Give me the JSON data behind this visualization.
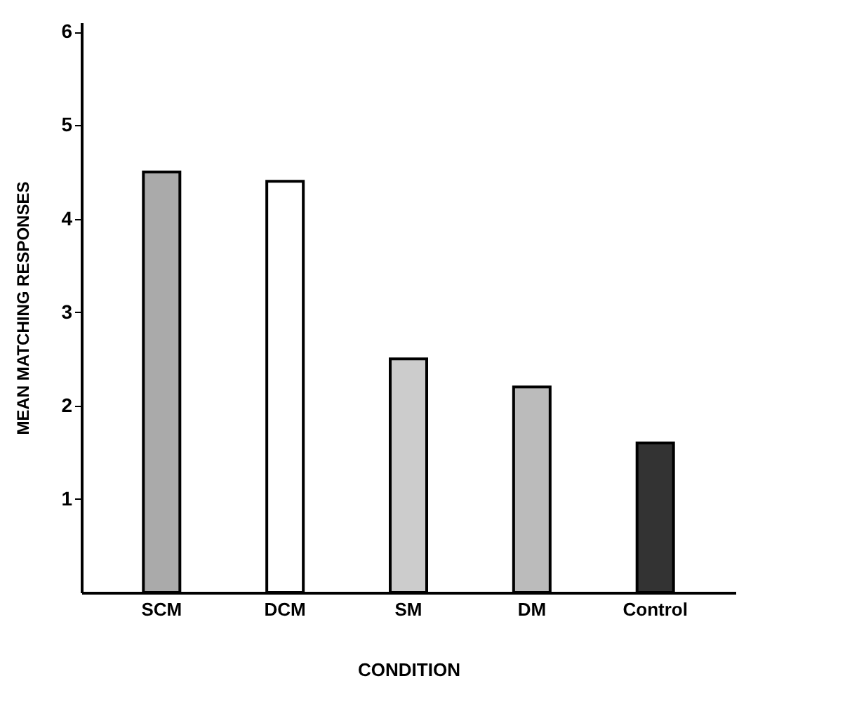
{
  "chart_data": {
    "type": "bar",
    "xlabel": "CONDITION",
    "ylabel": "MEAN MATCHING RESPONSES",
    "categories": [
      "SCM",
      "DCM",
      "SM",
      "DM",
      "Control"
    ],
    "values": [
      4.5,
      4.4,
      2.5,
      2.2,
      1.6
    ],
    "colors": [
      "#aaaaaa",
      "#ffffff",
      "#cccccc",
      "#bbbbbb",
      "#333333"
    ],
    "ylim": [
      0,
      6.1
    ],
    "yticks": [
      1,
      2,
      3,
      4,
      5,
      6
    ],
    "grid": false
  }
}
